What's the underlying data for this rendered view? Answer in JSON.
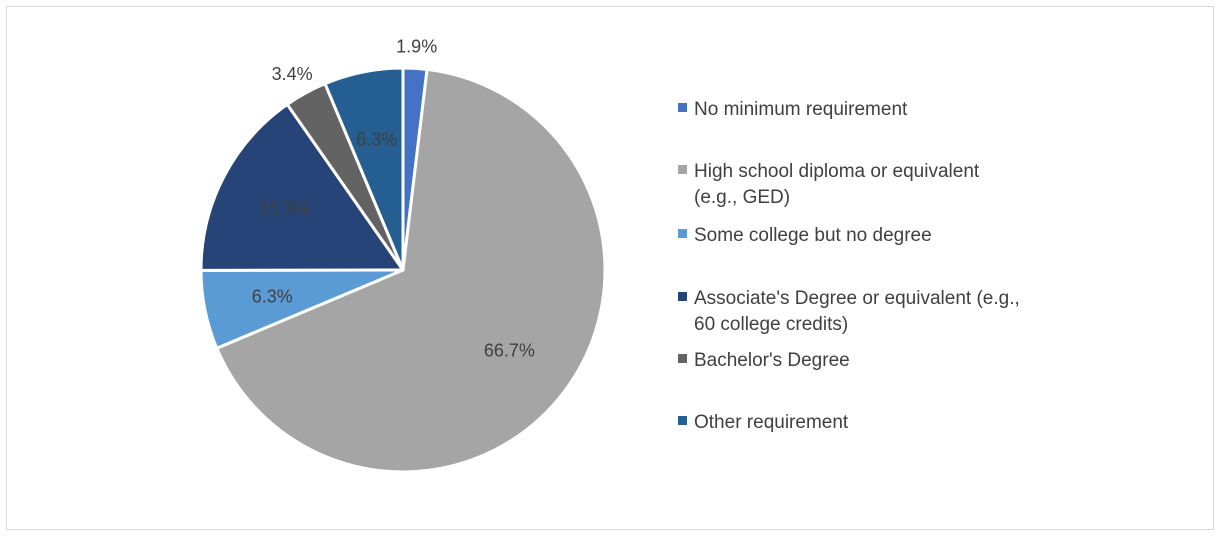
{
  "chart_data": {
    "type": "pie",
    "title": "",
    "legend_position": "right",
    "slices": [
      {
        "label": "No minimum requirement",
        "legend_lines": [
          "No minimum requirement"
        ],
        "value": 1.9,
        "display": "1.9%",
        "color": "#4472c4",
        "label_placement": "outside",
        "label_color": "#404040"
      },
      {
        "label": "High school diploma or equivalent (e.g., GED)",
        "legend_lines": [
          "High school diploma or equivalent",
          "(e.g., GED)"
        ],
        "value": 66.7,
        "display": "66.7%",
        "color": "#a5a5a5",
        "label_placement": "inside",
        "label_color": "#404040"
      },
      {
        "label": "Some college but no degree",
        "legend_lines": [
          "Some college but no degree"
        ],
        "value": 6.3,
        "display": "6.3%",
        "color": "#5b9bd5",
        "label_placement": "inside",
        "label_color": "#404040"
      },
      {
        "label": "Associate's Degree or equivalent (e.g., 60 college credits)",
        "legend_lines": [
          "Associate's Degree or equivalent (e.g.,",
          "60 college credits)"
        ],
        "value": 15.3,
        "display": "15.3%",
        "color": "#264478",
        "label_placement": "inside",
        "label_color": "#404040"
      },
      {
        "label": "Bachelor's Degree",
        "legend_lines": [
          "Bachelor's Degree"
        ],
        "value": 3.4,
        "display": "3.4%",
        "color": "#636363",
        "label_placement": "outside",
        "label_color": "#404040"
      },
      {
        "label": "Other requirement",
        "legend_lines": [
          "Other requirement"
        ],
        "value": 6.3,
        "display": "6.3%",
        "color": "#255e91",
        "label_placement": "inside",
        "label_color": "#404040"
      }
    ]
  }
}
